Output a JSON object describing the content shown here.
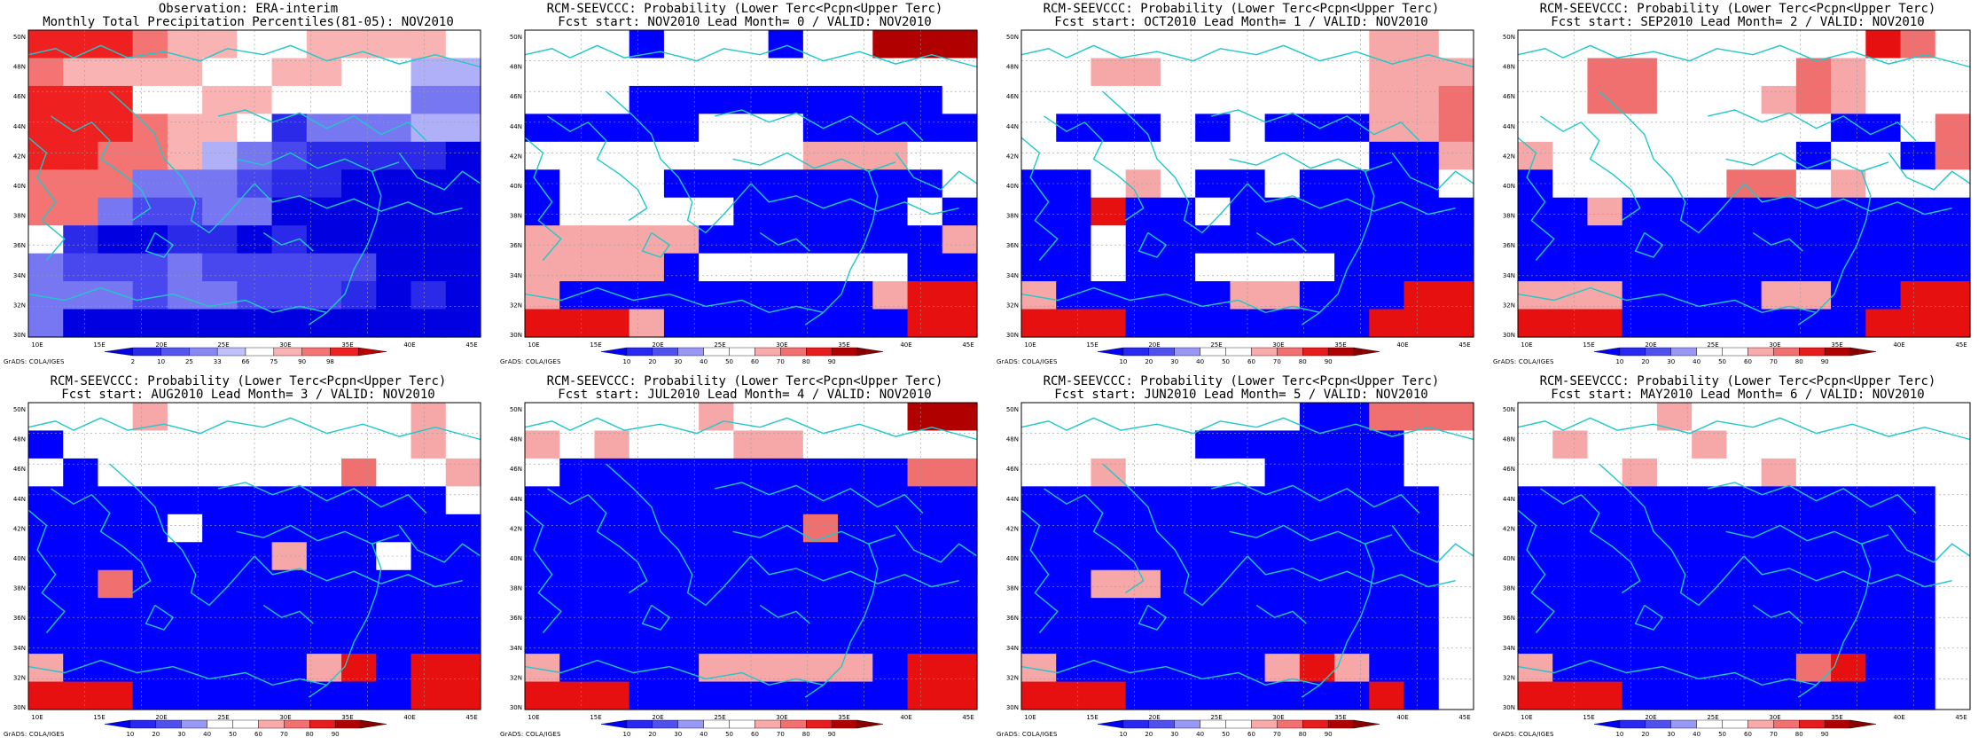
{
  "obs_colorbar": {
    "ticks": [
      "2",
      "10",
      "25",
      "33",
      "66",
      "75",
      "90",
      "98"
    ],
    "colors": [
      "#0000e0",
      "#2a2ae8",
      "#5555f0",
      "#8888f5",
      "#c0c0fa",
      "#ffffff",
      "#f9b3b3",
      "#f57575",
      "#ee2222",
      "#bb0000"
    ]
  },
  "prob_colorbar": {
    "ticks": [
      "10",
      "20",
      "30",
      "40",
      "50",
      "60",
      "70",
      "80",
      "90"
    ],
    "colors": [
      "#0000ff",
      "#2828f0",
      "#5050ee",
      "#9999f5",
      "#ffffff",
      "#ffffff",
      "#f9aaaa",
      "#f37070",
      "#e81c1c",
      "#b00000",
      "#880000"
    ]
  },
  "map_axes": {
    "x_labels": [
      "10E",
      "15E",
      "20E",
      "25E",
      "30E",
      "35E",
      "40E",
      "45E"
    ],
    "y_labels": [
      "50N",
      "48N",
      "46N",
      "44N",
      "42N",
      "40N",
      "38N",
      "36N",
      "34N",
      "32N",
      "30N"
    ]
  },
  "credit": "GrADS: COLA/IGES",
  "panels": [
    {
      "title1": "Observation: ERA-interim",
      "title2": "Monthly Total Precipitation Percentiles(81-05): NOV2010",
      "colorbar": "obs",
      "grid": [
        "9998776677776",
        "8777766776644",
        "9995677655533",
        "9998775133344",
        "9988743211110",
        "8883332110000",
        "8832233000000",
        "6100110100000",
        "3222322222000",
        "3332332221010",
        "3000000000000"
      ]
    },
    {
      "title1": "RCM-SEEVCCC: Probability (Lower Terc<Pcpn<Upper Terc)",
      "title2": "Fcst start: NOV2010   Lead Month= 0 / VALID: NOV2010",
      "colorbar": "prob",
      "grid": [
        "pppwpppwppddd",
        "ppppppppppppp",
        "ppphhhhhhhhhp",
        "hhhhhppphhhhh",
        "ppppppppgggpp",
        "hppphhhhhhhhp",
        "hppppphhhhhph",
        "ggggghhhhhhhg",
        "gggghpppppphh",
        "ghhhhhhhhhgrr",
        "rrrghhhhhhhrr"
      ]
    },
    {
      "title1": "RCM-SEEVCCC: Probability (Lower Terc<Pcpn<Upper Terc)",
      "title2": "Fcst start: OCT2010   Lead Month= 1 / VALID: NOV2010",
      "colorbar": "prob",
      "grid": [
        "ppppppppppggp",
        "ppggppppppggg",
        "ppppppppppgg+",
        "phhhphphhhgg+",
        "pppppppppphhg",
        "hhpgphhphhhhp",
        "hhrhhphhhhhhh",
        "hhphhhhhhhhhh",
        "hhphhpppphhhh",
        "ghhhhhgghhhrr",
        "rrrhhhhhhhrrr"
      ]
    },
    {
      "title1": "RCM-SEEVCCC: Probability (Lower Terc<Pcpn<Upper Terc)",
      "title2": "Fcst start: SEP2010   Lead Month= 2 / VALID: NOV2010",
      "colorbar": "prob",
      "grid": [
        "ppppppppppr+p",
        "pp++pppp+gppp",
        "pp++pppg+gppp",
        "ppppppppphhp+",
        "gppppppphpph+",
        "hppppp++pgppp",
        "hhghhhhhhhhhh",
        "hhhhhhhhhhhhh",
        "hhhhhhhhhhhhh",
        "ggghhhhgghhrr",
        "rrrhhhhhhhrrr"
      ]
    },
    {
      "title1": "RCM-SEEVCCC: Probability (Lower Terc<Pcpn<Upper Terc)",
      "title2": "Fcst start: AUG2010   Lead Month= 3 / VALID: NOV2010",
      "colorbar": "prob",
      "grid": [
        "pppgpppppppgp",
        "hppppppppppgp",
        "phppppppp+ppg",
        "hhhhhhhhhhhhp",
        "hhhhphhhhhhhh",
        "hhhhhhhghhphh",
        "hh+hhhhhhhhhh",
        "hhhhhhhhhhhhh",
        "hhhhhhhhhhhhh",
        "ghhhhhhhgrhrr",
        "rrrhhhhhhhhrr"
      ]
    },
    {
      "title1": "RCM-SEEVCCC: Probability (Lower Terc<Pcpn<Upper Terc)",
      "title2": "Fcst start: JUL2010   Lead Month= 4 / VALID: NOV2010",
      "colorbar": "prob",
      "grid": [
        "pppppgpppppdd",
        "gpgpppggppppp",
        "phhhhhhhhhh++",
        "hhhhhhhhhhhhh",
        "hhhhhhhh+hhhh",
        "hhhhhhhhhhhhh",
        "hhhhhhhhhhhhh",
        "hhhhhhhhhhhhh",
        "hhhhhhhhhhhhh",
        "ghhhhggggghrr",
        "rrrhhhhhhhhrr"
      ]
    },
    {
      "title1": "RCM-SEEVCCC: Probability (Lower Terc<Pcpn<Upper Terc)",
      "title2": "Fcst start: JUN2010   Lead Month= 5 / VALID: NOV2010",
      "colorbar": "prob",
      "grid": [
        "pppppppphh+++",
        "ppppphhhhhhpp",
        "ppgpppphhhhpp",
        "hhhhhhhhhhhhp",
        "hhhhhhhhhhhhp",
        "hhhhhhhhhhhhp",
        "hhgghhhhhhhhp",
        "hhhhhhhhhhhhp",
        "hhhhhhhhhhhhp",
        "ghhhhhhgrghhp",
        "rrrhhhhhhhrhp"
      ]
    },
    {
      "title1": "RCM-SEEVCCC: Probability (Lower Terc<Pcpn<Upper Terc)",
      "title2": "Fcst start: MAY2010   Lead Month= 6 / VALID: NOV2010",
      "colorbar": "prob",
      "grid": [
        "ppppgpppppppp",
        "pgpppgppppppp",
        "pppgpppgppppp",
        "hhhhhhhhhhhhp",
        "hhhhhhhhhhhhp",
        "hhhhhhhhhhhhp",
        "hhhhhhhhhhhhp",
        "hhhhhhhhhhhhp",
        "hhhhhhhhhhhhp",
        "ghhhhhhh+rhhp",
        "rrrhhhhhhhhhp"
      ]
    }
  ]
}
